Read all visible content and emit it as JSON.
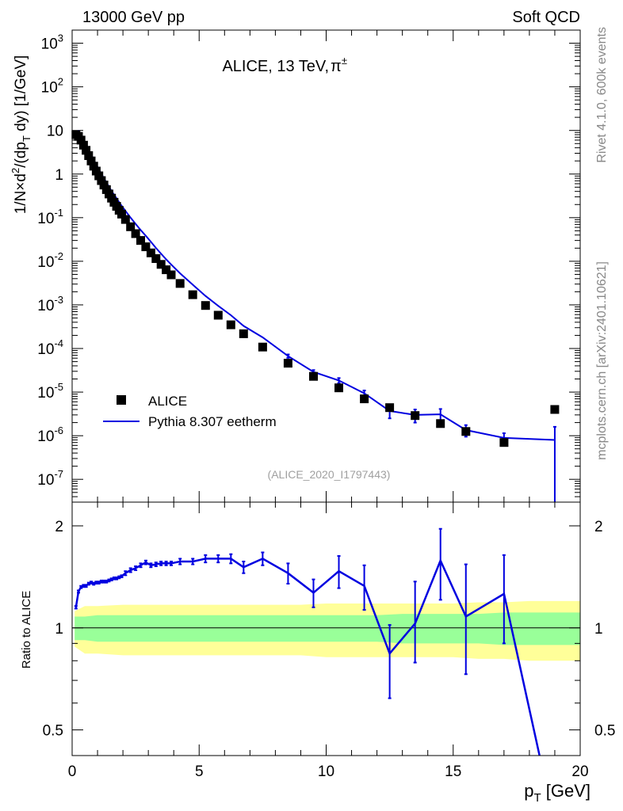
{
  "header": {
    "left": "13000 GeV pp",
    "right": "Soft QCD"
  },
  "side_labels": {
    "rivet": "Rivet 4.1.0,  600k events",
    "mcplots": "mcplots.cern.ch [arXiv:2401.10621]"
  },
  "colors": {
    "mc": "#0000e0",
    "data": "#000000",
    "band_inner": "#99ff99",
    "band_outer": "#ffff99"
  },
  "chart_data": [
    {
      "type": "scatter",
      "title": "ALICE, 13 TeV,",
      "title_particle": "π",
      "title_particle_sup": "±",
      "ylabel": "1/N × d²/(dp_T dy) [1/GeV]",
      "ylabel_parts": {
        "a": "1/N",
        "times": "×",
        "b": "d",
        "b_sup": "2",
        "c": "/(dp",
        "c_sub": "T",
        "d": " dy) [1/GeV]"
      },
      "yscale": "log",
      "ylim": [
        3e-08,
        2000
      ],
      "xlim": [
        0,
        20
      ],
      "ytick_labels": [
        {
          "mant": "10",
          "exp": "-7",
          "value": 1e-07
        },
        {
          "mant": "10",
          "exp": "-6",
          "value": 1e-06
        },
        {
          "mant": "10",
          "exp": "-5",
          "value": 1e-05
        },
        {
          "mant": "10",
          "exp": "-4",
          "value": 0.0001
        },
        {
          "mant": "10",
          "exp": "-3",
          "value": 0.001
        },
        {
          "mant": "10",
          "exp": "-2",
          "value": 0.01
        },
        {
          "mant": "10",
          "exp": "-1",
          "value": 0.1
        },
        {
          "mant": "1",
          "exp": "",
          "value": 1
        },
        {
          "mant": "10",
          "exp": "",
          "value": 10
        },
        {
          "mant": "10",
          "exp": "2",
          "value": 100
        },
        {
          "mant": "10",
          "exp": "3",
          "value": 1000
        }
      ],
      "legend_position": "lower-left",
      "legend": [
        "ALICE",
        "Pythia 8.307 eetherm"
      ],
      "watermark": "(ALICE_2020_I1797443)",
      "series": [
        {
          "name": "ALICE",
          "style": "markers",
          "x": [
            0.15,
            0.25,
            0.35,
            0.45,
            0.55,
            0.65,
            0.75,
            0.85,
            0.95,
            1.05,
            1.15,
            1.25,
            1.35,
            1.45,
            1.55,
            1.65,
            1.75,
            1.85,
            1.95,
            2.1,
            2.3,
            2.5,
            2.7,
            2.9,
            3.1,
            3.3,
            3.5,
            3.7,
            3.9,
            4.25,
            4.75,
            5.25,
            5.75,
            6.25,
            6.75,
            7.5,
            8.5,
            9.5,
            10.5,
            11.5,
            12.5,
            13.5,
            14.5,
            15.5,
            17.0,
            19.0
          ],
          "y": [
            8.0,
            7.3,
            6.0,
            4.6,
            3.5,
            2.65,
            2.0,
            1.52,
            1.17,
            0.91,
            0.71,
            0.56,
            0.44,
            0.35,
            0.28,
            0.225,
            0.182,
            0.148,
            0.121,
            0.091,
            0.062,
            0.043,
            0.03,
            0.0215,
            0.0156,
            0.0115,
            0.0085,
            0.0064,
            0.0049,
            0.0031,
            0.00171,
            0.00097,
            0.00058,
            0.00035,
            0.000218,
            0.000108,
            4.6e-05,
            2.3e-05,
            1.25e-05,
            7e-06,
            4.4e-06,
            2.9e-06,
            1.9e-06,
            1.25e-06,
            7e-07,
            4e-06
          ]
        },
        {
          "name": "Pythia 8.307 eetherm",
          "style": "line",
          "x": [
            0.15,
            0.25,
            0.35,
            0.45,
            0.55,
            0.65,
            0.75,
            0.85,
            0.95,
            1.05,
            1.15,
            1.25,
            1.35,
            1.45,
            1.55,
            1.65,
            1.75,
            1.85,
            1.95,
            2.1,
            2.3,
            2.5,
            2.7,
            2.9,
            3.1,
            3.3,
            3.5,
            3.7,
            3.9,
            4.25,
            4.75,
            5.25,
            5.75,
            6.25,
            6.75,
            7.5,
            8.5,
            9.5,
            10.5,
            11.5,
            12.5,
            13.5,
            14.5,
            15.5,
            17.0,
            19.0
          ],
          "y": [
            9.2,
            9.8,
            8.1,
            6.3,
            4.9,
            3.7,
            2.8,
            2.15,
            1.65,
            1.29,
            1.01,
            0.8,
            0.64,
            0.51,
            0.41,
            0.335,
            0.275,
            0.226,
            0.187,
            0.143,
            0.1,
            0.072,
            0.052,
            0.0385,
            0.0279,
            0.0202,
            0.0149,
            0.0111,
            0.0084,
            0.0053,
            0.0029,
            0.0016,
            0.00095,
            0.00058,
            0.00033,
            0.00018,
            6.7e-05,
            2.9e-05,
            1.85e-05,
            9.4e-06,
            3.7e-06,
            3e-06,
            3.1e-06,
            1.35e-06,
            8.9e-07,
            8e-07
          ],
          "err_low": [
            0.1,
            0.1,
            0.1,
            0.1,
            0.1,
            0.05,
            0.05,
            0.04,
            0.03,
            0.03,
            0.02,
            0.02,
            0.02,
            0.01,
            0.01,
            0.005,
            0.005,
            0.004,
            0.004,
            0.003,
            0.002,
            0.002,
            0.001,
            0.0008,
            0.0006,
            0.0004,
            0.0003,
            0.0002,
            0.0002,
            0.0001,
            6e-05,
            4e-05,
            3e-05,
            2e-05,
            1.5e-05,
            1e-05,
            6e-06,
            3e-06,
            2.5e-06,
            1.5e-06,
            1.2e-06,
            1e-06,
            1e-06,
            4e-07,
            2.5e-07,
            7.9e-07
          ],
          "err_high": [
            0.1,
            0.1,
            0.1,
            0.1,
            0.1,
            0.05,
            0.05,
            0.04,
            0.03,
            0.03,
            0.02,
            0.02,
            0.02,
            0.01,
            0.01,
            0.005,
            0.005,
            0.004,
            0.004,
            0.003,
            0.002,
            0.002,
            0.001,
            0.0008,
            0.0006,
            0.0004,
            0.0003,
            0.0002,
            0.0002,
            0.0001,
            6e-05,
            4e-05,
            3e-05,
            2e-05,
            1.5e-05,
            1e-05,
            6e-06,
            3e-06,
            2.5e-06,
            1.5e-06,
            1.2e-06,
            1e-06,
            1e-06,
            4e-07,
            2.5e-07,
            8e-07
          ]
        }
      ]
    },
    {
      "type": "line",
      "ylabel": "Ratio to ALICE",
      "xlabel_main": "p",
      "xlabel_sub": "T",
      "xlabel_unit": " [GeV]",
      "yscale": "log",
      "ylim": [
        0.42,
        2.35
      ],
      "xlim": [
        0,
        20
      ],
      "xticks": [
        0,
        5,
        10,
        15,
        20
      ],
      "xtick_labels": [
        "0",
        "5",
        "10",
        "15",
        "20"
      ],
      "yticks": [
        0.5,
        1,
        2
      ],
      "ytick_labels": [
        "0.5",
        "1",
        "2"
      ],
      "reference_line": 1,
      "band_x": [
        0.1,
        0.5,
        1,
        2,
        3,
        4,
        5,
        6,
        7,
        8,
        9,
        10,
        11,
        12,
        13,
        14,
        15,
        16,
        17,
        18,
        19,
        20
      ],
      "band_inner": [
        0.08,
        0.08,
        0.09,
        0.09,
        0.09,
        0.09,
        0.09,
        0.09,
        0.09,
        0.09,
        0.09,
        0.09,
        0.09,
        0.09,
        0.1,
        0.1,
        0.1,
        0.1,
        0.11,
        0.11,
        0.11,
        0.11
      ],
      "band_outer": [
        0.12,
        0.16,
        0.16,
        0.17,
        0.17,
        0.17,
        0.17,
        0.17,
        0.17,
        0.17,
        0.17,
        0.18,
        0.18,
        0.18,
        0.18,
        0.18,
        0.18,
        0.19,
        0.19,
        0.2,
        0.2,
        0.2
      ],
      "series": [
        {
          "name": "Pythia 8.307 eetherm",
          "x": [
            0.15,
            0.25,
            0.35,
            0.45,
            0.55,
            0.65,
            0.75,
            0.85,
            0.95,
            1.05,
            1.15,
            1.25,
            1.35,
            1.45,
            1.55,
            1.65,
            1.75,
            1.85,
            1.95,
            2.1,
            2.3,
            2.5,
            2.7,
            2.9,
            3.1,
            3.3,
            3.5,
            3.7,
            3.9,
            4.25,
            4.75,
            5.25,
            5.75,
            6.25,
            6.75,
            7.5,
            8.5,
            9.5,
            10.5,
            11.5,
            12.5,
            13.5,
            14.5,
            15.5,
            17.0,
            18.4
          ],
          "y": [
            1.15,
            1.28,
            1.32,
            1.33,
            1.33,
            1.35,
            1.36,
            1.35,
            1.36,
            1.36,
            1.37,
            1.37,
            1.37,
            1.38,
            1.39,
            1.4,
            1.4,
            1.41,
            1.42,
            1.45,
            1.48,
            1.5,
            1.53,
            1.56,
            1.53,
            1.54,
            1.55,
            1.55,
            1.55,
            1.57,
            1.57,
            1.6,
            1.6,
            1.6,
            1.51,
            1.6,
            1.45,
            1.27,
            1.47,
            1.33,
            0.84,
            1.03,
            1.58,
            1.08,
            1.26,
            0.42
          ],
          "err_low": [
            0.01,
            0.01,
            0.01,
            0.01,
            0.01,
            0.01,
            0.01,
            0.01,
            0.01,
            0.01,
            0.01,
            0.01,
            0.01,
            0.01,
            0.01,
            0.01,
            0.01,
            0.01,
            0.01,
            0.02,
            0.02,
            0.02,
            0.02,
            0.02,
            0.02,
            0.02,
            0.02,
            0.02,
            0.02,
            0.03,
            0.03,
            0.04,
            0.04,
            0.05,
            0.06,
            0.07,
            0.1,
            0.12,
            0.16,
            0.2,
            0.22,
            0.24,
            0.37,
            0.35,
            0.36,
            0.0
          ],
          "err_high": [
            0.01,
            0.01,
            0.01,
            0.01,
            0.01,
            0.01,
            0.01,
            0.01,
            0.01,
            0.01,
            0.01,
            0.01,
            0.01,
            0.01,
            0.01,
            0.01,
            0.01,
            0.01,
            0.01,
            0.02,
            0.02,
            0.02,
            0.02,
            0.02,
            0.02,
            0.02,
            0.02,
            0.02,
            0.02,
            0.03,
            0.03,
            0.04,
            0.04,
            0.05,
            0.06,
            0.07,
            0.1,
            0.12,
            0.16,
            0.2,
            0.18,
            0.34,
            0.38,
            0.46,
            0.38,
            0.0
          ]
        }
      ]
    }
  ]
}
